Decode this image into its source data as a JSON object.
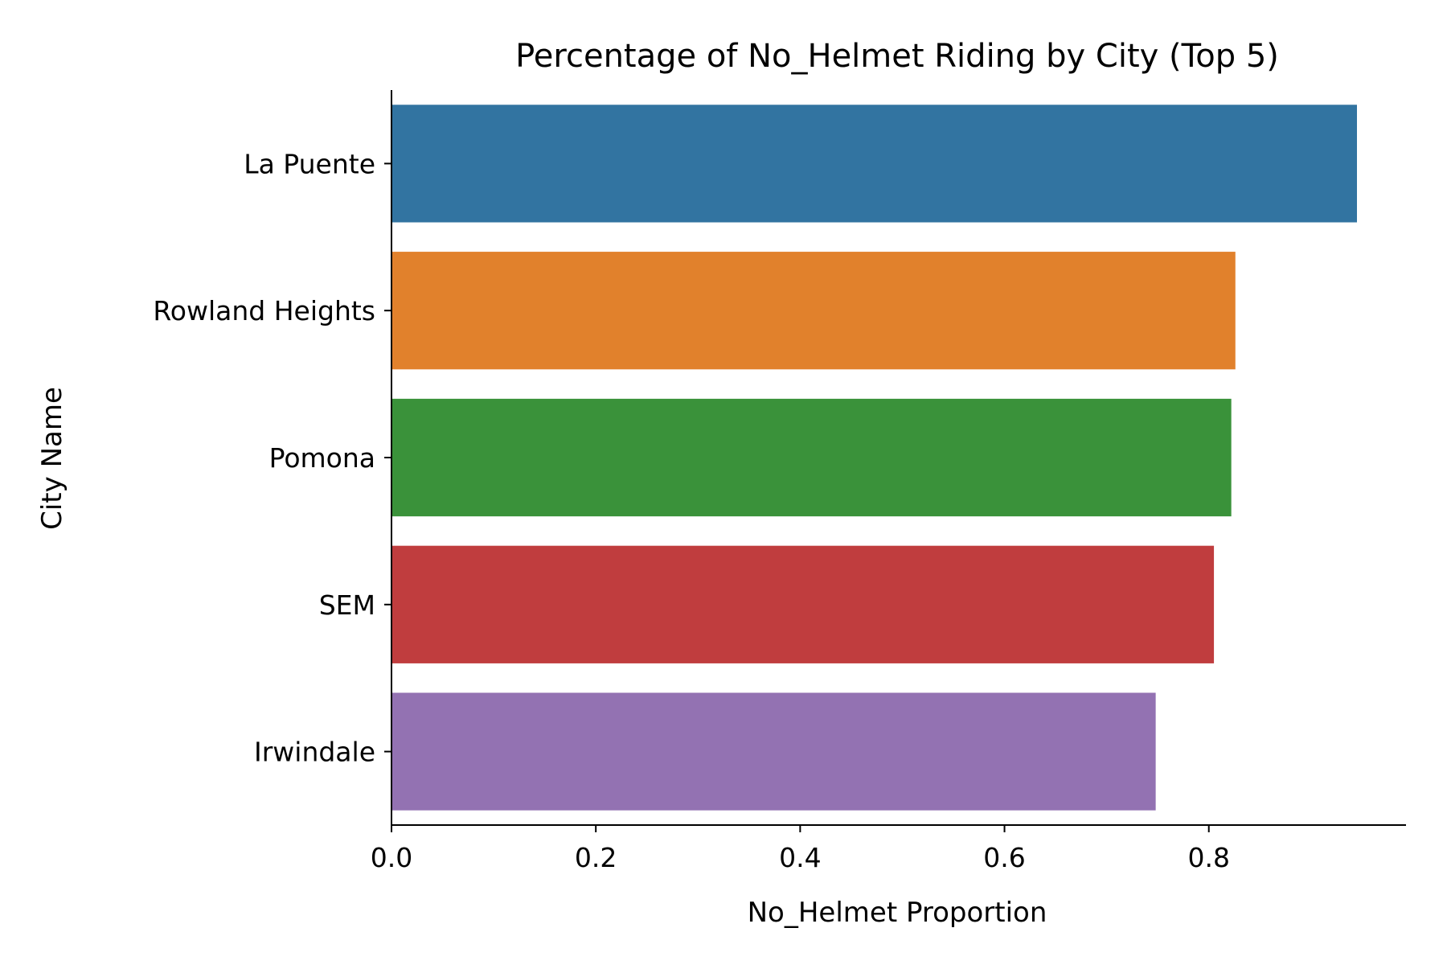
{
  "chart_data": {
    "type": "bar",
    "orientation": "horizontal",
    "title": "Percentage of No_Helmet Riding by City (Top 5)",
    "xlabel": "No_Helmet Proportion",
    "ylabel": "City Name",
    "categories": [
      "La Puente",
      "Rowland Heights",
      "Pomona",
      "SEM",
      "Irwindale"
    ],
    "values": [
      0.945,
      0.826,
      0.822,
      0.805,
      0.748
    ],
    "colors": [
      "#3274a1",
      "#e1812c",
      "#3a923a",
      "#c03d3e",
      "#9372b2"
    ],
    "xlim": [
      0,
      0.993
    ],
    "xticks": [
      "0.0",
      "0.2",
      "0.4",
      "0.6",
      "0.8"
    ],
    "xtick_values": [
      0,
      0.2,
      0.4,
      0.6,
      0.8
    ],
    "grid": false,
    "legend": "none"
  }
}
